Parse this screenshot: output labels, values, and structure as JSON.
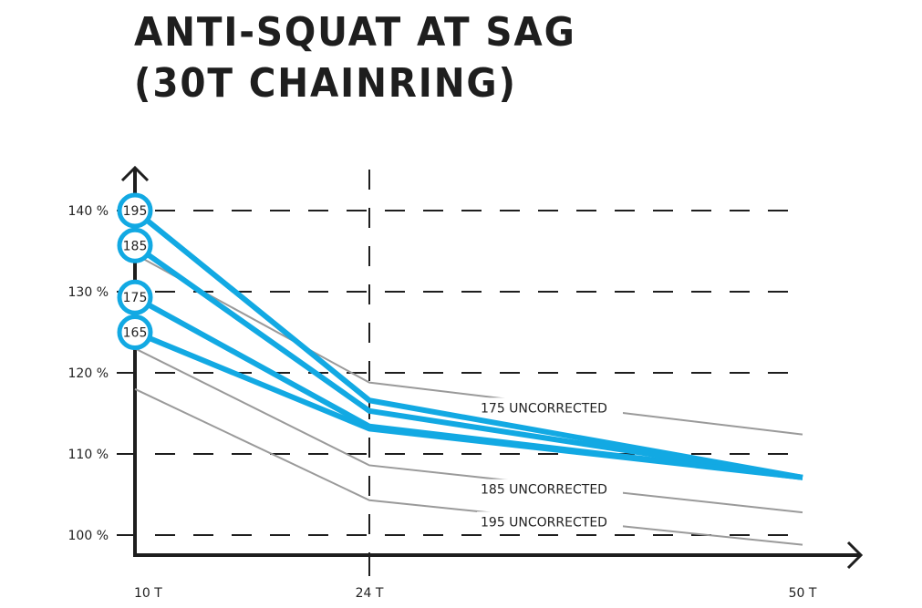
{
  "chart_data": {
    "type": "line",
    "title_line1": "ANTI-SQUAT AT SAG",
    "title_line2": "(30T CHAINRING)",
    "xlabel": "",
    "ylabel": "",
    "x_categories": [
      "10 T",
      "24 T",
      "50 T"
    ],
    "x_values": [
      10,
      24,
      50
    ],
    "y_ticks": [
      100,
      110,
      120,
      130,
      140
    ],
    "y_tick_labels": [
      "100 %",
      "110 %",
      "120 %",
      "130 %",
      "140 %"
    ],
    "ylim": [
      97.5,
      145
    ],
    "grid": "dashed horizontal",
    "series": [
      {
        "name": "195",
        "kind": "corrected",
        "values": [
          140,
          116.6,
          107.1
        ]
      },
      {
        "name": "185",
        "kind": "corrected",
        "values": [
          135.7,
          115.3,
          107.1
        ]
      },
      {
        "name": "175",
        "kind": "corrected",
        "values": [
          129.3,
          113.4,
          107.1
        ]
      },
      {
        "name": "165",
        "kind": "corrected",
        "values": [
          125.0,
          113.1,
          107.1
        ]
      },
      {
        "name": "175 UNCORRECTED",
        "kind": "uncorrected",
        "values": [
          134.6,
          118.8,
          112.4
        ]
      },
      {
        "name": "185 UNCORRECTED",
        "kind": "uncorrected",
        "values": [
          123.0,
          108.6,
          102.8
        ]
      },
      {
        "name": "195 UNCORRECTED",
        "kind": "uncorrected",
        "values": [
          118.0,
          104.3,
          98.8
        ]
      }
    ],
    "colors": {
      "corrected": "#12a9e3",
      "uncorrected": "#9a9a9a",
      "axis": "#1e1e1e"
    }
  }
}
